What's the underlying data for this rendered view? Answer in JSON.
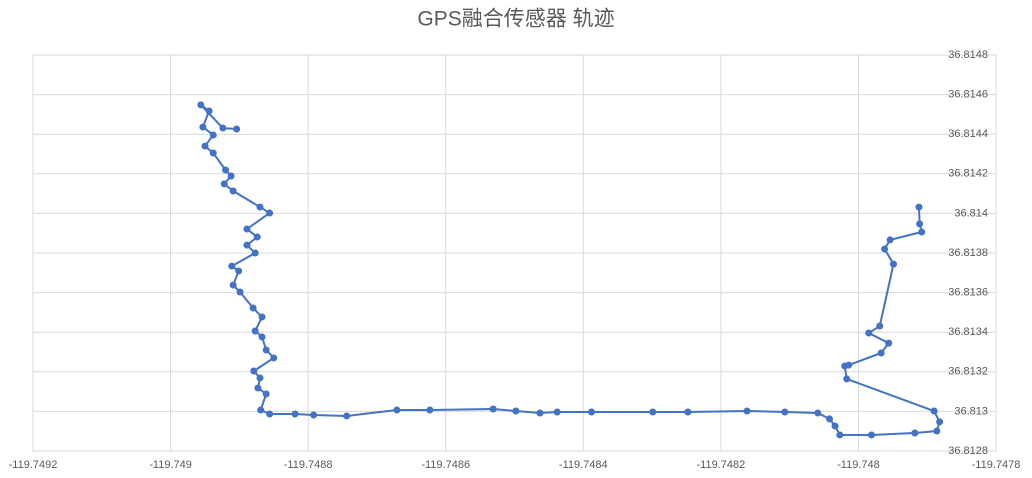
{
  "chart_data": {
    "type": "line",
    "title": "GPS融合传感器 轨迹",
    "color": "#4472c4",
    "markers": true,
    "grid": true,
    "series": [
      {
        "name": null,
        "color": "#4472c4",
        "x": [
          -119.748904,
          -119.748924,
          -119.748956,
          -119.748944,
          -119.748953,
          -119.748938,
          -119.74895,
          -119.748938,
          -119.74892,
          -119.748912,
          -119.748922,
          -119.748909,
          -119.74887,
          -119.748856,
          -119.748889,
          -119.748874,
          -119.748889,
          -119.748877,
          -119.748911,
          -119.748901,
          -119.748909,
          -119.748899,
          -119.74888,
          -119.748867,
          -119.748877,
          -119.748867,
          -119.748861,
          -119.74885,
          -119.748879,
          -119.74887,
          -119.748873,
          -119.748861,
          -119.748869,
          -119.748856,
          -119.748819,
          -119.748792,
          -119.748744,
          -119.748671,
          -119.748623,
          -119.748531,
          -119.748498,
          -119.748463,
          -119.748438,
          -119.748388,
          -119.748299,
          -119.748248,
          -119.748162,
          -119.748107,
          -119.748059,
          -119.748042,
          -119.748034,
          -119.748027,
          -119.747981,
          -119.747918,
          -119.747886,
          -119.747882,
          -119.74789,
          -119.748017,
          -119.74802,
          -119.748014,
          -119.747967,
          -119.747956,
          -119.747985,
          -119.747969,
          -119.747949,
          -119.747962,
          -119.747954,
          -119.747908,
          -119.747911,
          -119.747912
        ],
        "values": [
          36.814426,
          36.814431,
          36.814548,
          36.814517,
          36.814436,
          36.814396,
          36.81434,
          36.814305,
          36.814219,
          36.814189,
          36.814149,
          36.814113,
          36.814032,
          36.814002,
          36.813921,
          36.813881,
          36.81384,
          36.8138,
          36.813734,
          36.813709,
          36.813638,
          36.813603,
          36.813522,
          36.813477,
          36.813406,
          36.813376,
          36.81331,
          36.81327,
          36.813204,
          36.813169,
          36.813118,
          36.813088,
          36.813007,
          36.812987,
          36.812987,
          36.812982,
          36.812977,
          36.813007,
          36.813007,
          36.813012,
          36.813002,
          36.812992,
          36.812997,
          36.812997,
          36.812997,
          36.812997,
          36.813002,
          36.812997,
          36.812992,
          36.812962,
          36.812926,
          36.812881,
          36.812881,
          36.812891,
          36.812901,
          36.812947,
          36.813002,
          36.813164,
          36.813229,
          36.813234,
          36.813295,
          36.813345,
          36.813396,
          36.813431,
          36.813744,
          36.81382,
          36.813866,
          36.813906,
          36.813947,
          36.814032
        ]
      }
    ],
    "xlim": [
      -119.7492,
      -119.7478
    ],
    "xticks": [
      -119.7492,
      -119.749,
      -119.7488,
      -119.7486,
      -119.7484,
      -119.7482,
      -119.748,
      -119.7478
    ],
    "ylim": [
      36.8128,
      36.8148
    ],
    "yticks": [
      36.8128,
      36.813,
      36.8132,
      36.8134,
      36.8136,
      36.8138,
      36.814,
      36.8142,
      36.8144,
      36.8146,
      36.8148
    ]
  }
}
